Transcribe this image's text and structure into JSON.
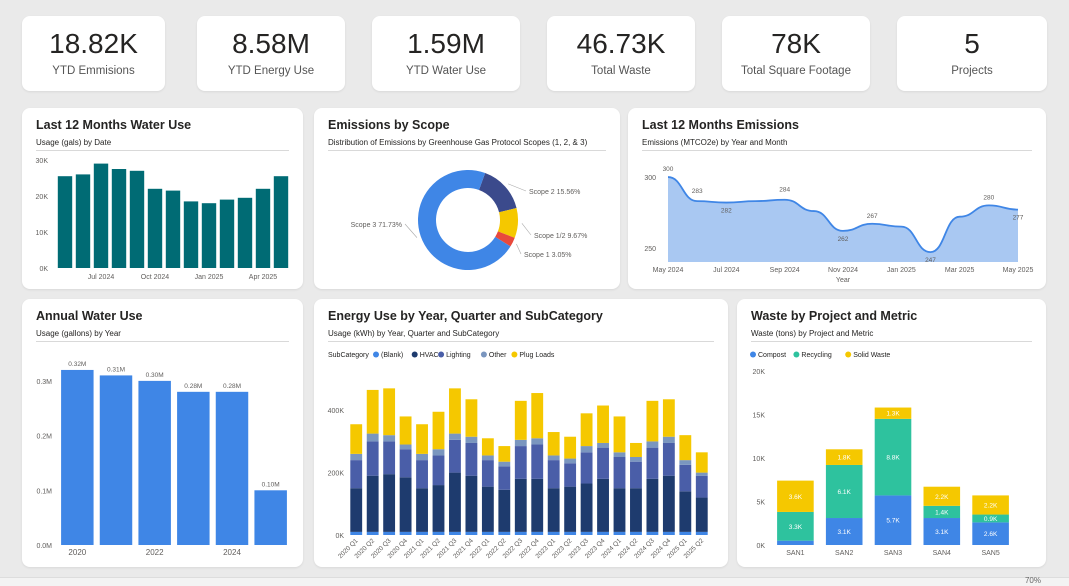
{
  "kpis": [
    {
      "value": "18.82K",
      "label": "YTD Emmisions"
    },
    {
      "value": "8.58M",
      "label": "YTD Energy Use"
    },
    {
      "value": "1.59M",
      "label": "YTD Water Use"
    },
    {
      "value": "46.73K",
      "label": "Total Waste"
    },
    {
      "value": "78K",
      "label": "Total Square Footage"
    },
    {
      "value": "5",
      "label": "Projects"
    }
  ],
  "water12": {
    "title": "Last 12 Months Water Use",
    "subtitle": "Usage (gals) by Date",
    "chart_data": {
      "type": "bar",
      "values": [
        25500,
        26000,
        29000,
        27500,
        27000,
        22000,
        21500,
        18500,
        18000,
        19000,
        19500,
        22000,
        25500
      ],
      "ylim": [
        0,
        30000
      ],
      "yticks": [
        "0K",
        "10K",
        "20K",
        "30K"
      ],
      "xticks": [
        "Jul 2024",
        "Oct 2024",
        "Jan 2025",
        "Apr 2025"
      ],
      "color": "#006b74"
    }
  },
  "scope": {
    "title": "Emissions by Scope",
    "subtitle": "Distribution of Emissions by Greenhouse Gas Protocol Scopes (1, 2, & 3)",
    "chart_data": {
      "type": "pie",
      "slices": [
        {
          "name": "Scope 3",
          "pct": 71.73,
          "label": "Scope 3 71.73%",
          "color": "#3f86e6"
        },
        {
          "name": "Scope 2",
          "pct": 15.56,
          "label": "Scope 2 15.56%",
          "color": "#3b4a8c"
        },
        {
          "name": "Scope 1/2",
          "pct": 9.67,
          "label": "Scope 1/2 9.67%",
          "color": "#f5c800"
        },
        {
          "name": "Scope 1",
          "pct": 3.05,
          "label": "Scope 1 3.05%",
          "color": "#e8493c"
        }
      ]
    }
  },
  "emis12": {
    "title": "Last 12 Months Emissions",
    "subtitle": "Emissions (MTCO2e) by Year and Month",
    "chart_data": {
      "type": "area",
      "values": [
        300,
        283,
        282,
        283,
        284,
        276,
        262,
        267,
        265,
        247,
        272,
        280,
        277
      ],
      "labels": [
        "300",
        "283",
        "282",
        "",
        "284",
        "",
        "262",
        "267",
        "",
        "247",
        "",
        "280",
        "277"
      ],
      "ylim": [
        240,
        305
      ],
      "yticks": [
        "300",
        "250"
      ],
      "xticks": [
        "May 2024",
        "Jul 2024",
        "Sep 2024",
        "Nov 2024",
        "Jan 2025",
        "Mar 2025",
        "May 2025"
      ],
      "xlabel": "Year",
      "color": "#3f86e6"
    }
  },
  "annual": {
    "title": "Annual Water Use",
    "subtitle": "Usage (gallons) by Year",
    "chart_data": {
      "type": "bar",
      "values": [
        0.32,
        0.31,
        0.3,
        0.28,
        0.28,
        0.1
      ],
      "labels": [
        "0.32M",
        "0.31M",
        "0.30M",
        "0.28M",
        "0.28M",
        "0.10M"
      ],
      "ylim": [
        0,
        0.34
      ],
      "yticks": [
        "0.0M",
        "0.1M",
        "0.2M",
        "0.3M"
      ],
      "xticks": [
        "2020",
        "",
        "2022",
        "",
        "2024",
        ""
      ],
      "color": "#3f86e6"
    }
  },
  "energy": {
    "title": "Energy Use by Year, Quarter and SubCategory",
    "subtitle": "Usage (kWh) by Year, Quarter and SubCategory",
    "legend_title": "SubCategory",
    "chart_data": {
      "type": "bar",
      "stacked": true,
      "categories": [
        "2020 Q1",
        "2020 Q2",
        "2020 Q3",
        "2020 Q4",
        "2021 Q1",
        "2021 Q2",
        "2021 Q3",
        "2021 Q4",
        "2022 Q1",
        "2022 Q2",
        "2022 Q3",
        "2022 Q4",
        "2023 Q1",
        "2023 Q2",
        "2023 Q3",
        "2023 Q4",
        "2024 Q1",
        "2024 Q2",
        "2024 Q3",
        "2024 Q4",
        "2025 Q1",
        "2025 Q2"
      ],
      "series": [
        {
          "name": "(Blank)",
          "color": "#3f86e6",
          "values": [
            10000,
            10000,
            10000,
            10000,
            10000,
            10000,
            10000,
            10000,
            10000,
            10000,
            10000,
            10000,
            10000,
            10000,
            10000,
            10000,
            10000,
            10000,
            10000,
            10000,
            10000,
            10000
          ]
        },
        {
          "name": "HVAC",
          "color": "#1e3b6e",
          "values": [
            140000,
            180000,
            185000,
            175000,
            140000,
            150000,
            190000,
            180000,
            145000,
            135000,
            170000,
            170000,
            140000,
            145000,
            155000,
            170000,
            140000,
            140000,
            170000,
            180000,
            130000,
            110000
          ]
        },
        {
          "name": "Lighting",
          "color": "#4a5ea8",
          "values": [
            90000,
            110000,
            105000,
            90000,
            90000,
            95000,
            105000,
            105000,
            85000,
            75000,
            105000,
            110000,
            90000,
            75000,
            100000,
            100000,
            100000,
            85000,
            100000,
            105000,
            85000,
            70000
          ]
        },
        {
          "name": "Other",
          "color": "#7a96bf",
          "values": [
            20000,
            25000,
            20000,
            15000,
            20000,
            20000,
            20000,
            20000,
            15000,
            15000,
            20000,
            20000,
            15000,
            15000,
            20000,
            15000,
            15000,
            15000,
            20000,
            20000,
            15000,
            10000
          ]
        },
        {
          "name": "Plug Loads",
          "color": "#f5c800",
          "values": [
            95000,
            140000,
            150000,
            90000,
            95000,
            120000,
            145000,
            120000,
            55000,
            50000,
            125000,
            145000,
            75000,
            70000,
            105000,
            120000,
            115000,
            45000,
            130000,
            120000,
            80000,
            65000
          ]
        }
      ],
      "ylim": [
        0,
        500000
      ],
      "yticks": [
        "0K",
        "200K",
        "400K"
      ]
    }
  },
  "waste": {
    "title": "Waste by Project and Metric",
    "subtitle": "Waste (tons) by Project  and Metric",
    "chart_data": {
      "type": "bar",
      "stacked": true,
      "categories": [
        "SAN1",
        "SAN2",
        "SAN3",
        "SAN4",
        "SAN5"
      ],
      "series": [
        {
          "name": "Compost",
          "color": "#3f86e6",
          "values": [
            0.5,
            3.1,
            5.7,
            3.1,
            2.6
          ],
          "labels": [
            "",
            "3.1K",
            "5.7K",
            "3.1K",
            "2.6K"
          ]
        },
        {
          "name": "Recycling",
          "color": "#2ec29e",
          "values": [
            3.3,
            6.1,
            8.8,
            1.4,
            0.9
          ],
          "labels": [
            "3.3K",
            "6.1K",
            "8.8K",
            "1.4K",
            "0.9K"
          ]
        },
        {
          "name": "Solid Waste",
          "color": "#f5c800",
          "values": [
            3.6,
            1.8,
            1.3,
            2.2,
            2.2
          ],
          "labels": [
            "3.6K",
            "1.8K",
            "1.3K",
            "2.2K",
            "2.2K"
          ]
        }
      ],
      "ylim": [
        0,
        20
      ],
      "yticks": [
        "0K",
        "5K",
        "10K",
        "15K",
        "20K"
      ]
    }
  },
  "status": {
    "zoom": "70%"
  }
}
